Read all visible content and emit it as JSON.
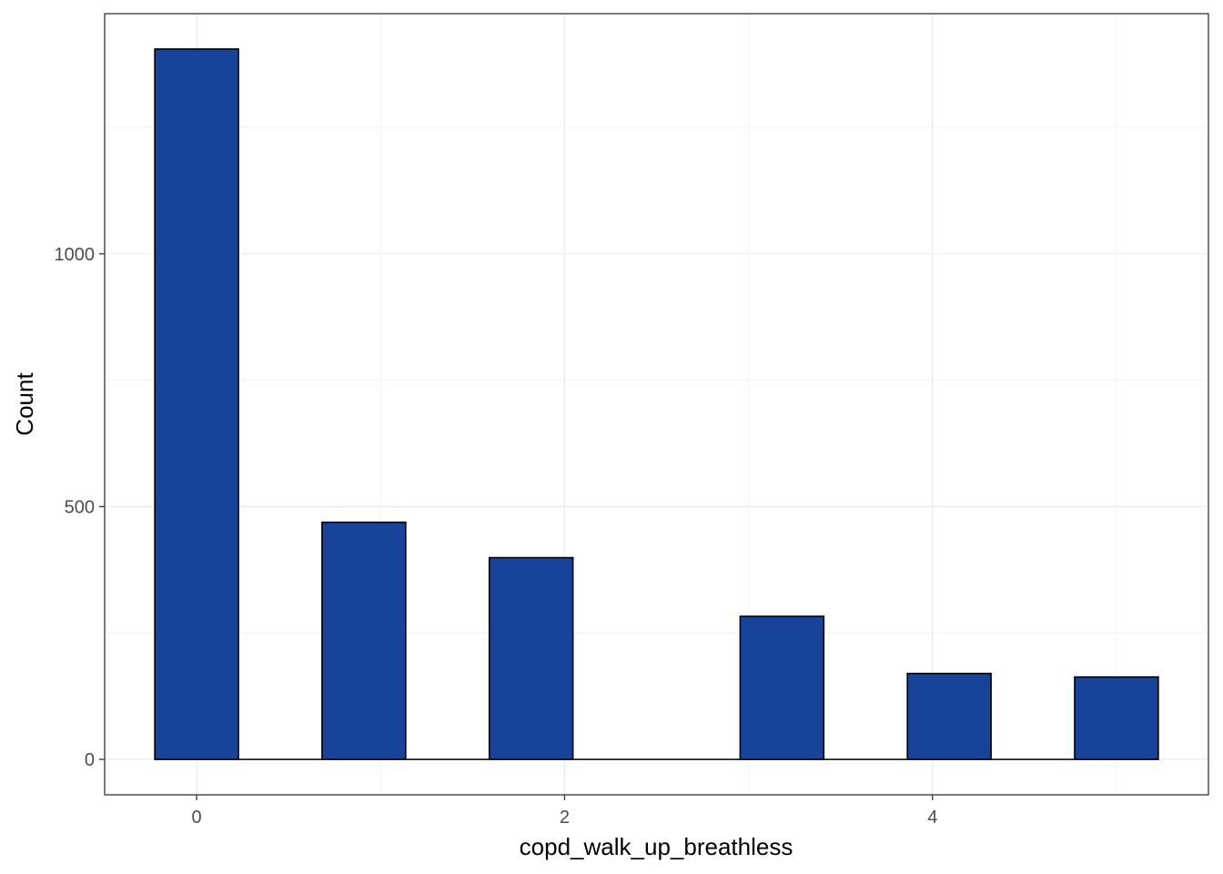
{
  "chart_data": {
    "type": "bar",
    "title": "",
    "xlabel": "copd_walk_up_breathless",
    "ylabel": "Count",
    "x_ticks": [
      0,
      2,
      4
    ],
    "y_ticks": [
      0,
      500,
      1000
    ],
    "xlim": [
      -0.5,
      5.5
    ],
    "ylim": [
      -70,
      1475
    ],
    "bin_width": 0.4545,
    "bins": [
      {
        "x_start": -0.2273,
        "x_end": 0.2273,
        "count": 1405
      },
      {
        "x_start": 0.6818,
        "x_end": 1.1364,
        "count": 469
      },
      {
        "x_start": 1.5909,
        "x_end": 2.0455,
        "count": 399
      },
      {
        "x_start": 2.9545,
        "x_end": 3.4091,
        "count": 283
      },
      {
        "x_start": 3.8636,
        "x_end": 4.3182,
        "count": 170
      },
      {
        "x_start": 4.7727,
        "x_end": 5.2273,
        "count": 163
      }
    ],
    "grid": true,
    "legend": "none",
    "colors": {
      "bar_fill": "#17449a",
      "bar_stroke": "#000000",
      "grid_major": "#ebebeb",
      "grid_minor": "#f3f3f3",
      "panel_border": "#333333",
      "tick_text": "#4d4d4d"
    }
  }
}
